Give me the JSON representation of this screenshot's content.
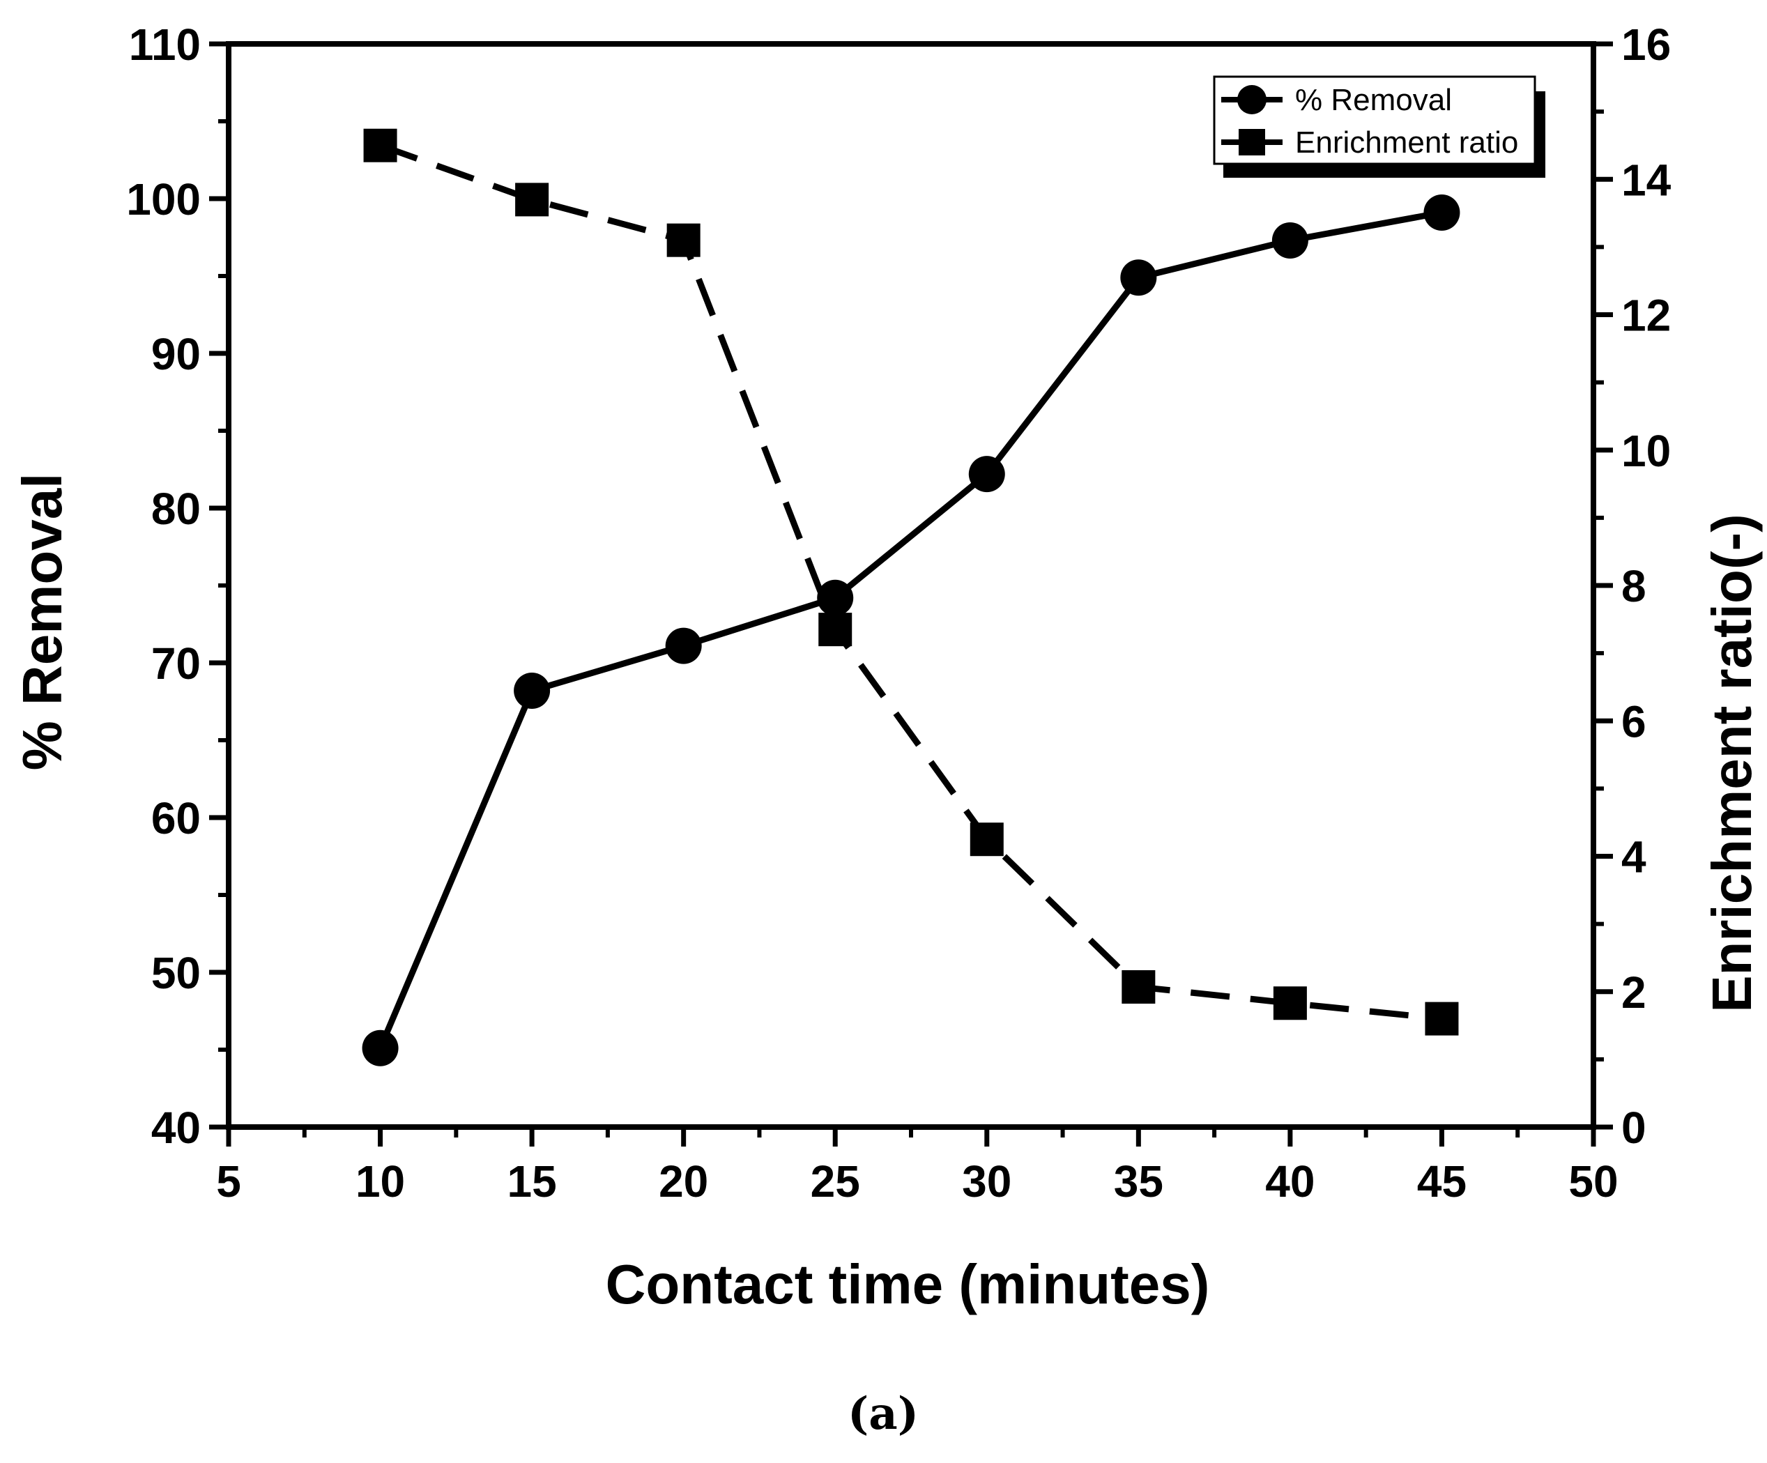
{
  "chart_data": {
    "type": "line",
    "x": [
      10,
      15,
      20,
      25,
      30,
      35,
      40,
      45
    ],
    "xlabel": "Contact time (minutes)",
    "ylabel_left": "% Removal",
    "ylabel_right": "Enrichment ratio(-)",
    "xlim": [
      5,
      50
    ],
    "ylim_left": [
      40,
      110
    ],
    "ylim_right": [
      0,
      16
    ],
    "x_ticks": [
      5,
      10,
      15,
      20,
      25,
      30,
      35,
      40,
      45,
      50
    ],
    "y_ticks_left": [
      40,
      50,
      60,
      70,
      80,
      90,
      100,
      110
    ],
    "y_ticks_right": [
      0,
      2,
      4,
      6,
      8,
      10,
      12,
      14,
      16
    ],
    "legend_position": "top-right",
    "grid": false,
    "series": [
      {
        "name": "% Removal",
        "axis": "left",
        "marker": "circle",
        "line_style": "solid",
        "values": [
          45.1,
          68.2,
          71.1,
          74.2,
          82.2,
          94.9,
          97.3,
          99.1
        ]
      },
      {
        "name": "Enrichment ratio",
        "axis": "right",
        "marker": "square",
        "line_style": "dashed",
        "values": [
          14.5,
          13.7,
          13.1,
          7.35,
          4.25,
          2.07,
          1.83,
          1.6
        ]
      }
    ]
  },
  "caption": "(a)",
  "colors": {
    "ink": "#000000",
    "background": "#ffffff"
  }
}
